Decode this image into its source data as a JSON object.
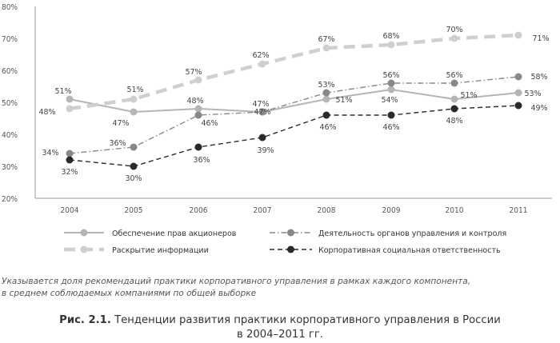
{
  "chart_data": {
    "type": "line",
    "x": [
      "2004",
      "2005",
      "2006",
      "2007",
      "2008",
      "2009",
      "2010",
      "2011"
    ],
    "ylim": [
      20,
      80
    ],
    "yticks": [
      "20%",
      "30%",
      "40%",
      "50%",
      "60%",
      "70%",
      "80%"
    ],
    "grid": false,
    "legend_position": "bottom",
    "series": [
      {
        "name": "Обеспечение прав акционеров",
        "values": [
          51,
          47,
          48,
          47,
          51,
          54,
          51,
          53
        ],
        "color": "#b5b5b5",
        "style": "solid"
      },
      {
        "name": "Раскрытие информации",
        "values": [
          48,
          51,
          57,
          62,
          67,
          68,
          70,
          71
        ],
        "color": "#cfcfcf",
        "style": "dashed-thick"
      },
      {
        "name": "Деятельность органов управления и контроля",
        "values": [
          34,
          36,
          46,
          47,
          53,
          56,
          56,
          58
        ],
        "color": "#888888",
        "style": "dashdot"
      },
      {
        "name": "Корпоративная социальная ответственность",
        "values": [
          32,
          30,
          36,
          39,
          46,
          46,
          48,
          49
        ],
        "color": "#2a2a2a",
        "style": "dashed"
      }
    ],
    "data_labels": [
      [
        {
          "text": "51%",
          "dx": -8,
          "dy": -10
        },
        {
          "text": "47%",
          "dx": -16,
          "dy": 14
        },
        {
          "text": "48%",
          "dx": -4,
          "dy": -10
        },
        {
          "text": "47%",
          "dx": -2,
          "dy": -10
        },
        {
          "text": "51%",
          "dx": 22,
          "dy": 1
        },
        {
          "text": "54%",
          "dx": -2,
          "dy": 13
        },
        {
          "text": "51%",
          "dx": 18,
          "dy": -5
        },
        {
          "text": "53%",
          "dx": 18,
          "dy": 1
        }
      ],
      [
        {
          "text": "48%",
          "dx": -28,
          "dy": 4
        },
        {
          "text": "51%",
          "dx": 2,
          "dy": -12
        },
        {
          "text": "57%",
          "dx": -6,
          "dy": -10
        },
        {
          "text": "62%",
          "dx": -2,
          "dy": -11
        },
        {
          "text": "67%",
          "dx": 0,
          "dy": -11
        },
        {
          "text": "68%",
          "dx": 0,
          "dy": -11
        },
        {
          "text": "70%",
          "dx": 0,
          "dy": -11
        },
        {
          "text": "71%",
          "dx": 28,
          "dy": 4
        }
      ],
      [
        {
          "text": "34%",
          "dx": -24,
          "dy": -1
        },
        {
          "text": "36%",
          "dx": -20,
          "dy": -5
        },
        {
          "text": "46%",
          "dx": 14,
          "dy": 10
        },
        {
          "text": "47%",
          "dx": 0,
          "dy": 0
        },
        {
          "text": "53%",
          "dx": 0,
          "dy": -10
        },
        {
          "text": "56%",
          "dx": 0,
          "dy": -10
        },
        {
          "text": "56%",
          "dx": 0,
          "dy": -10
        },
        {
          "text": "58%",
          "dx": 26,
          "dy": 0
        }
      ],
      [
        {
          "text": "32%",
          "dx": 0,
          "dy": 15
        },
        {
          "text": "30%",
          "dx": 0,
          "dy": 15
        },
        {
          "text": "36%",
          "dx": 4,
          "dy": 16
        },
        {
          "text": "39%",
          "dx": 4,
          "dy": 16
        },
        {
          "text": "46%",
          "dx": 2,
          "dy": 15
        },
        {
          "text": "46%",
          "dx": 0,
          "dy": 15
        },
        {
          "text": "48%",
          "dx": 0,
          "dy": 15
        },
        {
          "text": "49%",
          "dx": 26,
          "dy": 3
        }
      ]
    ]
  },
  "note_line1": "Указывается доля рекомендаций практики корпоративного управления в рамках каждого компонента,",
  "note_line2": "в среднем соблюдаемых компаниями по общей выборке",
  "caption": {
    "label": "Рис. 2.1.",
    "title_line1": "Тенденции развития практики корпоративного управления в России",
    "title_line2": "в 2004–2011 гг."
  }
}
